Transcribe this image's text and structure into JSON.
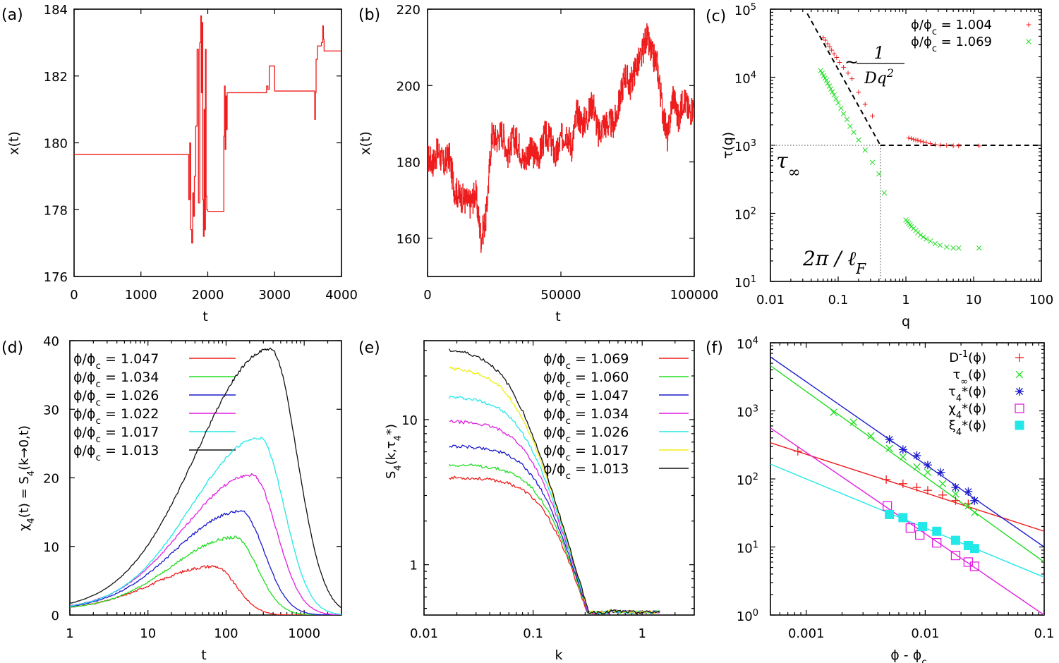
{
  "colors": {
    "red": "#ee1c1c",
    "green": "#22dd22",
    "blue": "#1a1acc",
    "magenta": "#e020e0",
    "cyan": "#22e8e8",
    "black": "#111111",
    "yellow": "#eeee11"
  },
  "chart_data": [
    {
      "id": "a",
      "panel_label": "(a)",
      "type": "line",
      "xlabel": "t",
      "ylabel": "x(t)",
      "xlim": [
        0,
        4000
      ],
      "ylim": [
        176,
        184
      ],
      "xticks": [
        0,
        1000,
        2000,
        3000,
        4000
      ],
      "yticks": [
        176,
        178,
        180,
        182,
        184
      ],
      "series": [
        {
          "name": "trajectory",
          "color": "red",
          "step": true,
          "x": [
            0,
            1700,
            1715,
            1730,
            1745,
            1760,
            1775,
            1790,
            1800,
            1820,
            1840,
            1860,
            1880,
            1895,
            1905,
            1915,
            1925,
            1935,
            1945,
            1955,
            1965,
            1975,
            1985,
            2000,
            2100,
            2200,
            2240,
            2250,
            2260,
            2270,
            2280,
            2290,
            2300,
            2320,
            2400,
            2800,
            2880,
            2900,
            2920,
            3000,
            3500,
            3590,
            3600,
            3610,
            3620,
            3640,
            3660,
            3700,
            3720,
            3730,
            3740,
            3760,
            3800,
            3900,
            4000
          ],
          "y": [
            179.65,
            179.65,
            178.3,
            180.0,
            177.4,
            177.0,
            178.5,
            177.8,
            179.0,
            180.5,
            182.8,
            178.2,
            183.0,
            183.8,
            181.5,
            183.6,
            178.3,
            177.2,
            181.0,
            177.4,
            182.8,
            178.4,
            178.0,
            177.95,
            177.95,
            177.95,
            180.2,
            181.7,
            179.8,
            181.4,
            180.4,
            181.5,
            181.5,
            181.5,
            181.5,
            181.5,
            181.7,
            181.6,
            182.3,
            181.55,
            181.55,
            181.55,
            180.7,
            181.5,
            182.5,
            182.9,
            182.9,
            183.0,
            183.5,
            183.1,
            182.75,
            182.75,
            182.75,
            182.75,
            182.75
          ]
        }
      ]
    },
    {
      "id": "b",
      "panel_label": "(b)",
      "type": "line",
      "xlabel": "t",
      "ylabel": "x(t)",
      "xlim": [
        0,
        100000
      ],
      "ylim": [
        150,
        220
      ],
      "xticks": [
        0,
        50000,
        100000
      ],
      "yticks": [
        160,
        180,
        200,
        220
      ],
      "series": [
        {
          "name": "trajectory",
          "color": "red",
          "jitter": 4,
          "x": [
            0,
            2000,
            4000,
            6000,
            8000,
            10000,
            12000,
            14000,
            16000,
            18000,
            20000,
            22000,
            24000,
            26000,
            28000,
            30000,
            32000,
            34000,
            36000,
            38000,
            40000,
            42000,
            44000,
            46000,
            48000,
            50000,
            52000,
            54000,
            56000,
            58000,
            60000,
            62000,
            64000,
            66000,
            68000,
            70000,
            72000,
            74000,
            76000,
            78000,
            80000,
            82000,
            84000,
            86000,
            88000,
            90000,
            92000,
            94000,
            96000,
            98000,
            100000
          ],
          "y": [
            181,
            180,
            183,
            179,
            182,
            173,
            171,
            170,
            169,
            172,
            160,
            166,
            187,
            186,
            188,
            182,
            186,
            185,
            180,
            183,
            182,
            182,
            187,
            186,
            181,
            186,
            188,
            184,
            193,
            190,
            192,
            196,
            187,
            190,
            190,
            190,
            196,
            203,
            200,
            205,
            207,
            213,
            208,
            206,
            194,
            186,
            198,
            191,
            197,
            193,
            195
          ]
        }
      ]
    },
    {
      "id": "c",
      "panel_label": "(c)",
      "type": "scatter",
      "xlabel": "q",
      "ylabel": "τ(q)",
      "scale": "log",
      "xlim": [
        0.01,
        100
      ],
      "ylim": [
        10,
        100000
      ],
      "xticks": [
        "0.01",
        "0.1",
        "1",
        "10",
        "100"
      ],
      "ytick_exponents": [
        1,
        2,
        3,
        4,
        5
      ],
      "legend": [
        {
          "label": "ϕ/ϕ",
          "sub": "c",
          "value": " = 1.004",
          "color": "red",
          "marker": "plus"
        },
        {
          "label": "ϕ/ϕ",
          "sub": "c",
          "value": " = 1.069",
          "color": "green",
          "marker": "cross"
        }
      ],
      "series": [
        {
          "name": "ϕ/ϕc = 1.004",
          "color": "red",
          "marker": "plus",
          "x": [
            0.06,
            0.065,
            0.07,
            0.075,
            0.08,
            0.087,
            0.095,
            0.105,
            0.12,
            0.14,
            0.16,
            0.2,
            0.25,
            0.32,
            1.1,
            1.2,
            1.3,
            1.4,
            1.5,
            1.65,
            1.8,
            2.0,
            2.3,
            2.7,
            3.2,
            4.0,
            5.0,
            6.0,
            12.0
          ],
          "y": [
            38000,
            35000,
            31000,
            28000,
            25000,
            22000,
            19500,
            16500,
            14000,
            11500,
            9500,
            6000,
            4000,
            2700,
            1280,
            1250,
            1220,
            1200,
            1180,
            1150,
            1120,
            1100,
            1060,
            1030,
            1000,
            990,
            980,
            980,
            980
          ]
        },
        {
          "name": "ϕ/ϕc = 1.069",
          "color": "green",
          "marker": "cross",
          "x": [
            0.055,
            0.058,
            0.061,
            0.064,
            0.067,
            0.07,
            0.074,
            0.078,
            0.082,
            0.087,
            0.093,
            0.1,
            0.11,
            0.12,
            0.135,
            0.15,
            0.17,
            0.2,
            0.25,
            0.32,
            0.4,
            0.48,
            1.0,
            1.05,
            1.1,
            1.15,
            1.2,
            1.3,
            1.4,
            1.5,
            1.65,
            1.8,
            2.0,
            2.3,
            2.7,
            3.2,
            4.0,
            5.0,
            6.0,
            12.0
          ],
          "y": [
            12500,
            11500,
            10500,
            9700,
            9000,
            8200,
            7400,
            6700,
            6100,
            5500,
            4800,
            4200,
            3500,
            2900,
            2400,
            1900,
            1550,
            1200,
            850,
            560,
            380,
            200,
            80,
            76,
            72,
            68,
            64,
            60,
            56,
            52,
            48,
            45,
            42,
            39,
            36,
            34,
            32,
            31,
            31,
            31
          ]
        }
      ],
      "reference_lines": [
        {
          "label": "~ 1/(Dq²)"
        },
        {
          "label": "τ∞ plateau"
        }
      ],
      "annotations": {
        "prefix": "~",
        "num": "1",
        "den": "Dq",
        "den_sup": "2",
        "tau": "τ",
        "tau_sub": "∞",
        "two_pi": "2π / ℓ",
        "two_pi_sub": "F"
      },
      "slope_line": {
        "x": [
          0.035,
          0.42
        ],
        "y": [
          86000,
          1000
        ]
      },
      "plateau_line": {
        "x": [
          0.42,
          100
        ],
        "y": [
          1000,
          1000
        ]
      }
    },
    {
      "id": "d",
      "panel_label": "(d)",
      "type": "line",
      "xlabel": "t",
      "ylabel_parts": [
        "χ",
        "4",
        "(t) = S",
        "4",
        "(k→0,t)"
      ],
      "xscale": "log",
      "xlim": [
        1,
        3000
      ],
      "ylim": [
        0,
        40
      ],
      "xticks": [
        "1",
        "10",
        "100",
        "1000"
      ],
      "yticks": [
        0,
        10,
        20,
        30,
        40
      ],
      "series": [
        {
          "name": "ϕ/ϕc = 1.047",
          "color": "red",
          "peak_t": 70,
          "peak": 6.3,
          "width": 1.15,
          "base": 0.8
        },
        {
          "name": "ϕ/ϕc = 1.034",
          "color": "green",
          "peak_t": 130,
          "peak": 10.5,
          "width": 1.2,
          "base": 0.8
        },
        {
          "name": "ϕ/ϕc = 1.026",
          "color": "blue",
          "peak_t": 155,
          "peak": 14.3,
          "width": 1.25,
          "base": 0.8
        },
        {
          "name": "ϕ/ϕc = 1.022",
          "color": "magenta",
          "peak_t": 215,
          "peak": 19.6,
          "width": 1.3,
          "base": 0.8
        },
        {
          "name": "ϕ/ϕc = 1.017",
          "color": "cyan",
          "peak_t": 270,
          "peak": 25.0,
          "width": 1.3,
          "base": 0.8
        },
        {
          "name": "ϕ/ϕc = 1.013",
          "color": "black",
          "peak_t": 370,
          "peak": 38.0,
          "width": 1.4,
          "base": 0.8
        }
      ],
      "legend": [
        {
          "label": "ϕ/ϕ",
          "sub": "c",
          "value": " = 1.047",
          "color": "red"
        },
        {
          "label": "ϕ/ϕ",
          "sub": "c",
          "value": " = 1.034",
          "color": "green"
        },
        {
          "label": "ϕ/ϕ",
          "sub": "c",
          "value": " = 1.026",
          "color": "blue"
        },
        {
          "label": "ϕ/ϕ",
          "sub": "c",
          "value": " = 1.022",
          "color": "magenta"
        },
        {
          "label": "ϕ/ϕ",
          "sub": "c",
          "value": " = 1.017",
          "color": "cyan"
        },
        {
          "label": "ϕ/ϕ",
          "sub": "c",
          "value": " = 1.013",
          "color": "black"
        }
      ]
    },
    {
      "id": "e",
      "panel_label": "(e)",
      "type": "line",
      "xlabel": "k",
      "ylabel_parts": [
        "S",
        "4",
        "(k,τ",
        "4",
        "*)"
      ],
      "scale": "log",
      "xlim": [
        0.01,
        3
      ],
      "ylim": [
        0.45,
        35
      ],
      "xticks": [
        "0.01",
        "0.1",
        "1"
      ],
      "yticks": [
        "1",
        "10"
      ],
      "series": [
        {
          "name": "ϕ/ϕc = 1.069",
          "color": "red",
          "plateau": 4.0
        },
        {
          "name": "ϕ/ϕc = 1.060",
          "color": "green",
          "plateau": 4.9
        },
        {
          "name": "ϕ/ϕc = 1.047",
          "color": "blue",
          "plateau": 6.6
        },
        {
          "name": "ϕ/ϕc = 1.034",
          "color": "magenta",
          "plateau": 9.8
        },
        {
          "name": "ϕ/ϕc = 1.026",
          "color": "cyan",
          "plateau": 14.5
        },
        {
          "name": "ϕ/ϕc = 1.017",
          "color": "yellow",
          "plateau": 23.0
        },
        {
          "name": "ϕ/ϕc = 1.013",
          "color": "black",
          "plateau": 31.0
        }
      ],
      "k_range": [
        0.017,
        1.45
      ],
      "legend": [
        {
          "label": "ϕ/ϕ",
          "sub": "c",
          "value": " = 1.069",
          "color": "red"
        },
        {
          "label": "ϕ/ϕ",
          "sub": "c",
          "value": " = 1.060",
          "color": "green"
        },
        {
          "label": "ϕ/ϕ",
          "sub": "c",
          "value": " = 1.047",
          "color": "blue"
        },
        {
          "label": "ϕ/ϕ",
          "sub": "c",
          "value": " = 1.034",
          "color": "magenta"
        },
        {
          "label": "ϕ/ϕ",
          "sub": "c",
          "value": " = 1.026",
          "color": "cyan"
        },
        {
          "label": "ϕ/ϕ",
          "sub": "c",
          "value": " = 1.017",
          "color": "yellow"
        },
        {
          "label": "ϕ/ϕ",
          "sub": "c",
          "value": " = 1.013",
          "color": "black"
        }
      ]
    },
    {
      "id": "f",
      "panel_label": "(f)",
      "type": "scatter",
      "xlabel": "ϕ - ϕ",
      "xlabel_sub": "c",
      "scale": "log",
      "xlim": [
        0.0005,
        0.1
      ],
      "ylim": [
        1,
        10000
      ],
      "xticks": [
        "0.001",
        "0.01",
        "0.1"
      ],
      "ytick_exponents": [
        0,
        1,
        2,
        3,
        4
      ],
      "series": [
        {
          "name": "D⁻¹(ϕ)",
          "color": "red",
          "marker": "plus",
          "x": [
            0.00085,
            0.0047,
            0.0065,
            0.0085,
            0.0105,
            0.014,
            0.018,
            0.023
          ],
          "y": [
            255,
            98,
            85,
            75,
            68,
            58,
            48,
            43
          ],
          "fit": {
            "x": [
              0.0005,
              0.1
            ],
            "y": [
              340,
              17
            ]
          }
        },
        {
          "name": "τ∞(ϕ)",
          "color": "green",
          "marker": "cross",
          "x": [
            0.0017,
            0.0025,
            0.0035,
            0.005,
            0.0065,
            0.0085,
            0.0105,
            0.014,
            0.018,
            0.023,
            0.026
          ],
          "y": [
            950,
            680,
            430,
            280,
            210,
            150,
            125,
            85,
            60,
            40,
            32
          ],
          "fit": {
            "x": [
              0.0005,
              0.1
            ],
            "y": [
              4600,
              6
            ]
          }
        },
        {
          "name": "τ₄*(ϕ)",
          "color": "blue",
          "marker": "asterisk",
          "x": [
            0.005,
            0.0065,
            0.0085,
            0.0105,
            0.0135,
            0.018,
            0.023,
            0.026
          ],
          "y": [
            380,
            270,
            220,
            160,
            125,
            75,
            65,
            48
          ],
          "fit": {
            "x": [
              0.0005,
              0.1
            ],
            "y": [
              6200,
              10
            ]
          }
        },
        {
          "name": "χ₄*(ϕ)",
          "color": "magenta",
          "marker": "square-open",
          "x": [
            0.0048,
            0.0075,
            0.009,
            0.0125,
            0.018,
            0.023,
            0.026
          ],
          "y": [
            40,
            19,
            15,
            11.5,
            7.5,
            6,
            5.2
          ],
          "fit": {
            "x": [
              0.0005,
              0.1
            ],
            "y": [
              560,
              1
            ]
          }
        },
        {
          "name": "ξ₄*(ϕ)",
          "color": "cyan",
          "marker": "square-filled",
          "x": [
            0.005,
            0.0065,
            0.0095,
            0.0125,
            0.018,
            0.023,
            0.026
          ],
          "y": [
            30,
            27,
            20,
            17,
            12.5,
            10.5,
            9.5
          ],
          "fit": {
            "x": [
              0.0005,
              0.1
            ],
            "y": [
              165,
              3.6
            ]
          }
        }
      ],
      "legend": [
        {
          "label": "D",
          "sup": "-1",
          "value": "(ϕ)",
          "color": "red",
          "marker": "plus"
        },
        {
          "label": "τ",
          "sub": "∞",
          "value": "(ϕ)",
          "color": "green",
          "marker": "cross"
        },
        {
          "label": "τ",
          "sub": "4",
          "value": "*(ϕ)",
          "color": "blue",
          "marker": "asterisk"
        },
        {
          "label": "χ",
          "sub": "4",
          "value": "*(ϕ)",
          "color": "magenta",
          "marker": "square-open"
        },
        {
          "label": "ξ",
          "sub": "4",
          "value": "*(ϕ)",
          "color": "cyan",
          "marker": "square-filled"
        }
      ]
    }
  ]
}
